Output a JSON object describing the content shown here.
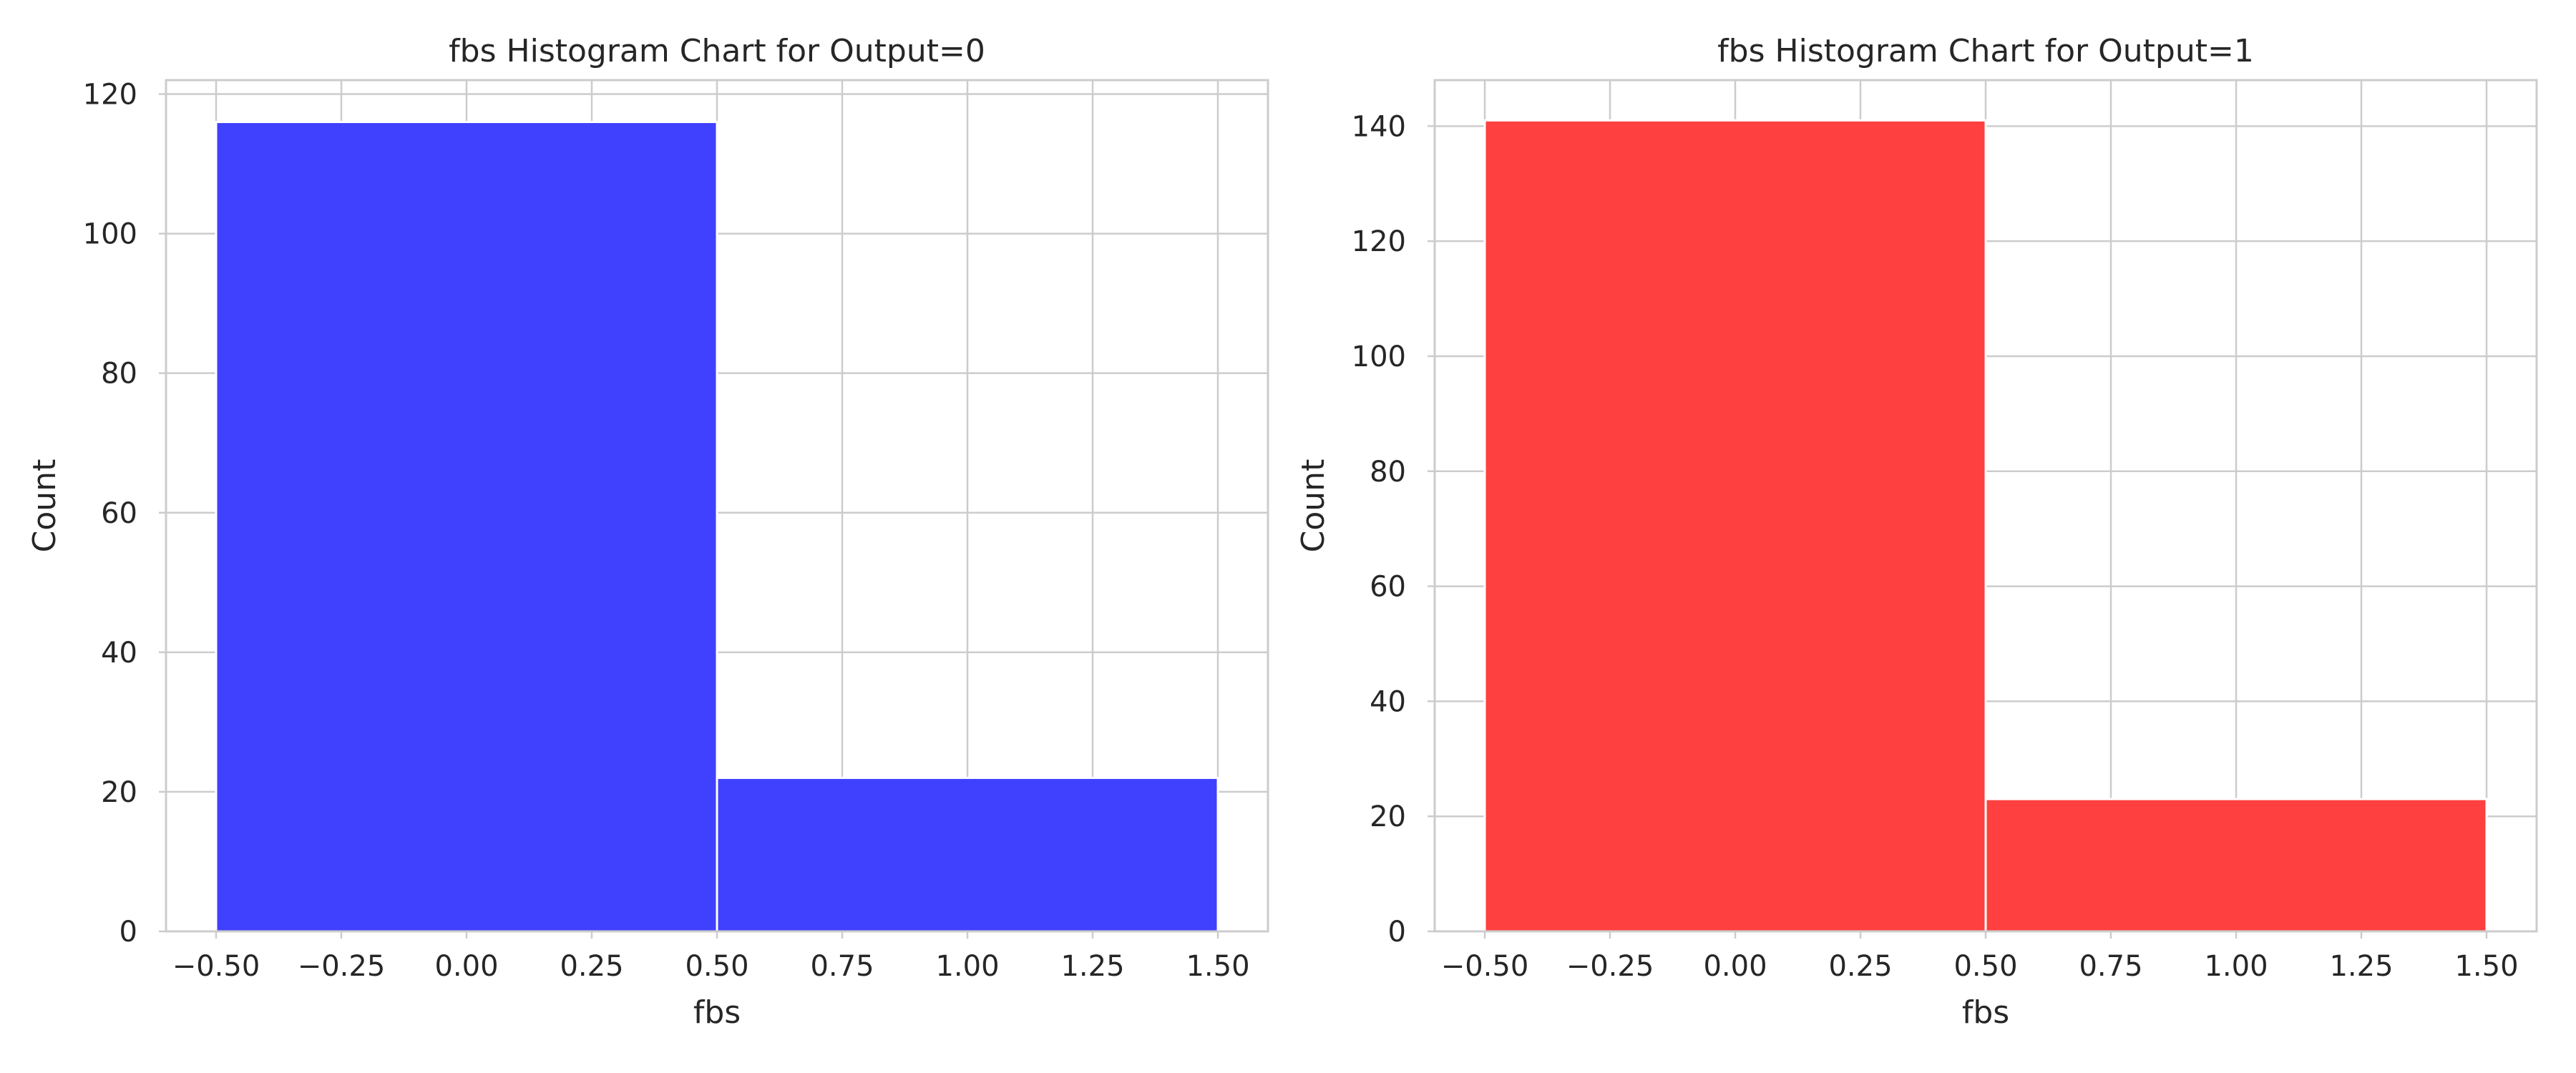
{
  "chart_data": [
    {
      "type": "bar",
      "title": "fbs Histogram Chart for Output=0",
      "xlabel": "fbs",
      "ylabel": "Count",
      "bins": [
        {
          "x0": -0.5,
          "x1": 0.5,
          "value": 116
        },
        {
          "x0": 0.5,
          "x1": 1.5,
          "value": 22
        }
      ],
      "xlim": [
        -0.6,
        1.6
      ],
      "ylim": [
        0,
        122
      ],
      "xticks": [
        -0.5,
        -0.25,
        0.0,
        0.25,
        0.5,
        0.75,
        1.0,
        1.25,
        1.5
      ],
      "xtick_labels": [
        "−0.50",
        "−0.25",
        "0.00",
        "0.25",
        "0.50",
        "0.75",
        "1.00",
        "1.25",
        "1.50"
      ],
      "yticks": [
        0,
        20,
        40,
        60,
        80,
        100,
        120
      ],
      "ytick_labels": [
        "0",
        "20",
        "40",
        "60",
        "80",
        "100",
        "120"
      ],
      "grid": true,
      "color": "#4040ff"
    },
    {
      "type": "bar",
      "title": "fbs Histogram Chart for Output=1",
      "xlabel": "fbs",
      "ylabel": "Count",
      "bins": [
        {
          "x0": -0.5,
          "x1": 0.5,
          "value": 141
        },
        {
          "x0": 0.5,
          "x1": 1.5,
          "value": 23
        }
      ],
      "xlim": [
        -0.6,
        1.6
      ],
      "ylim": [
        0,
        148
      ],
      "xticks": [
        -0.5,
        -0.25,
        0.0,
        0.25,
        0.5,
        0.75,
        1.0,
        1.25,
        1.5
      ],
      "xtick_labels": [
        "−0.50",
        "−0.25",
        "0.00",
        "0.25",
        "0.50",
        "0.75",
        "1.00",
        "1.25",
        "1.50"
      ],
      "yticks": [
        0,
        20,
        40,
        60,
        80,
        100,
        120,
        140
      ],
      "ytick_labels": [
        "0",
        "20",
        "40",
        "60",
        "80",
        "100",
        "120",
        "140"
      ],
      "grid": true,
      "color": "#ff4040"
    }
  ]
}
